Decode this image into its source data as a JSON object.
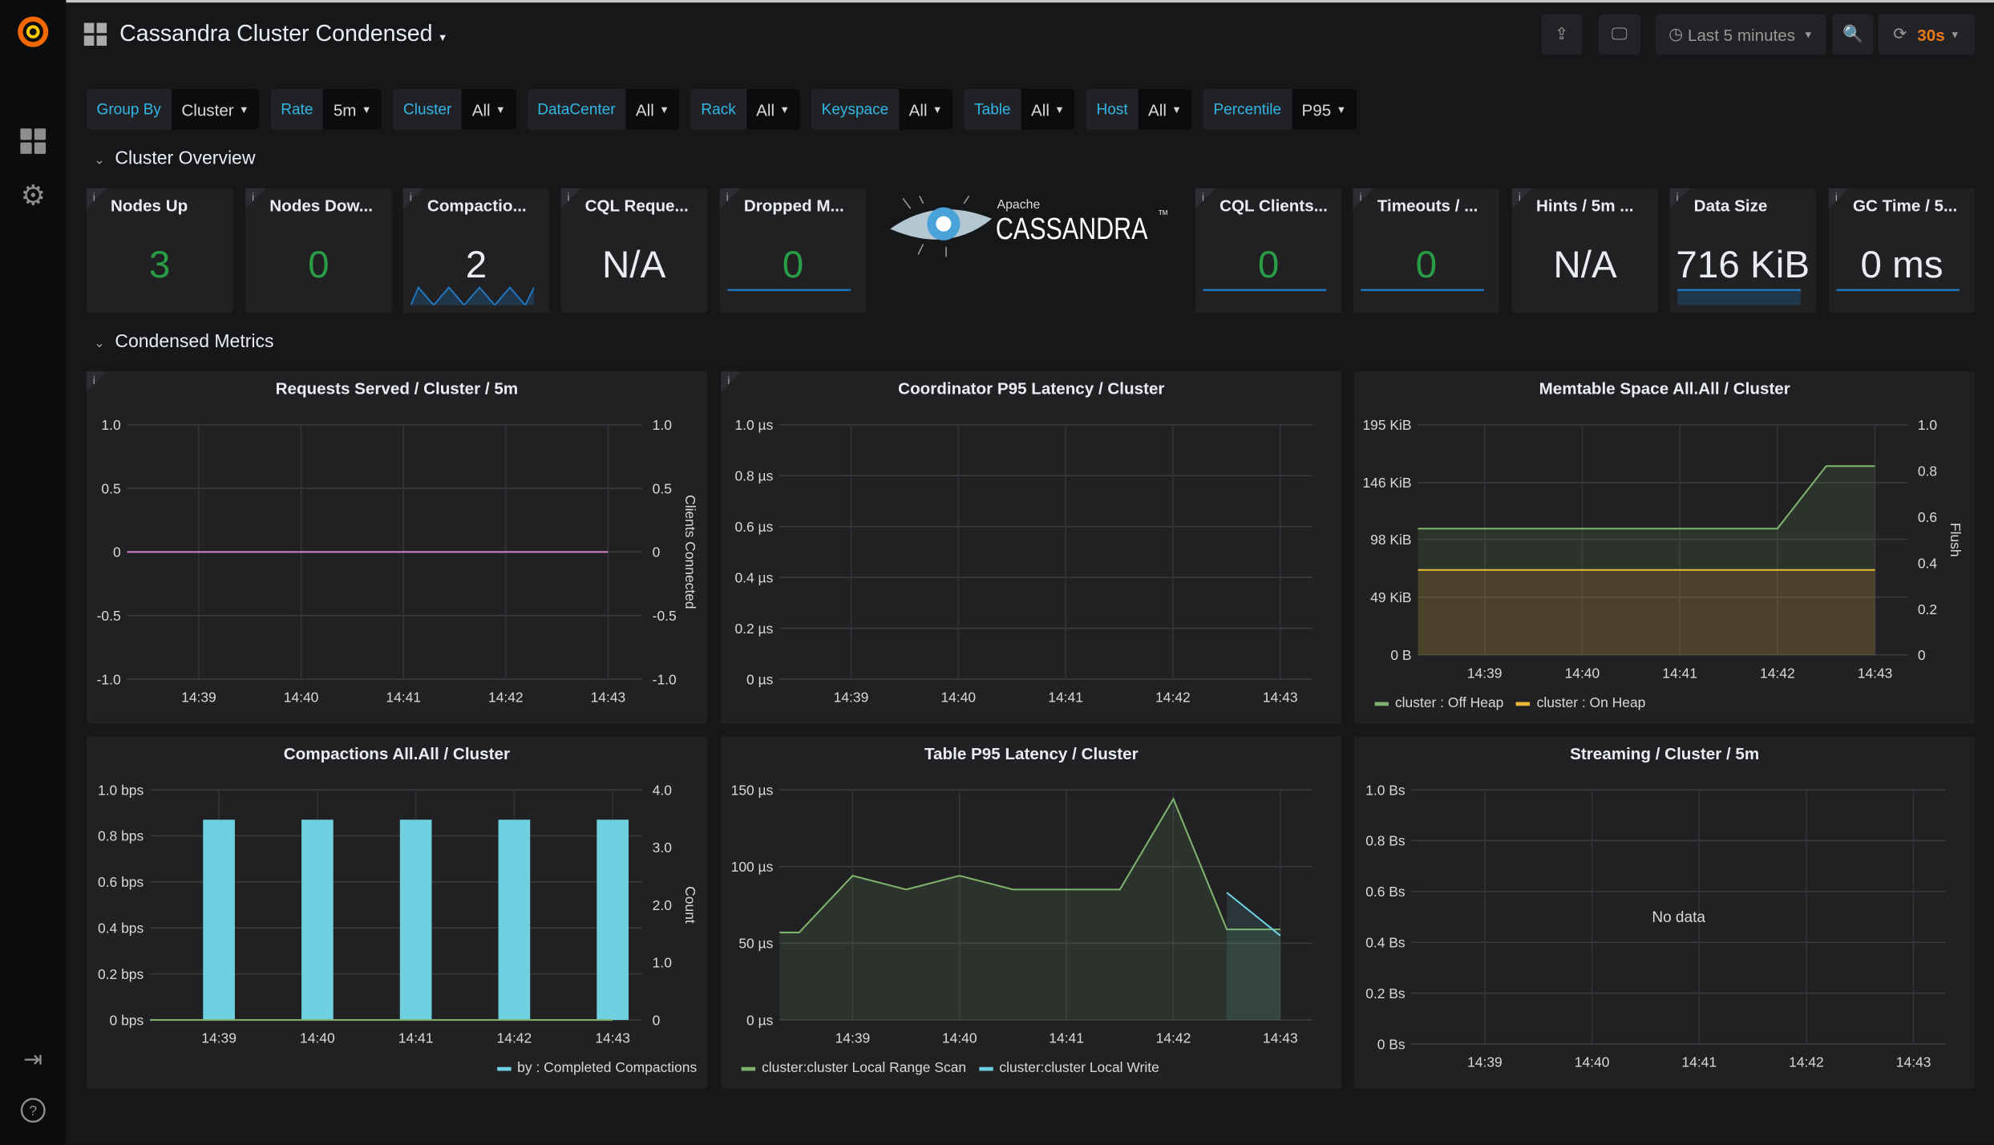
{
  "header": {
    "title": "Cassandra Cluster Condensed",
    "time_range": "Last 5 minutes",
    "refresh": "30s",
    "buttons": [
      "share-icon",
      "tv-icon",
      "zoom-out-icon",
      "refresh-icon"
    ]
  },
  "sidebar": {
    "items": [
      "grafana-logo",
      "dashboards-icon",
      "gear-icon",
      "sign-in-icon",
      "help-icon"
    ]
  },
  "variables": [
    {
      "label": "Group By",
      "value": "Cluster"
    },
    {
      "label": "Rate",
      "value": "5m"
    },
    {
      "label": "Cluster",
      "value": "All"
    },
    {
      "label": "DataCenter",
      "value": "All"
    },
    {
      "label": "Rack",
      "value": "All"
    },
    {
      "label": "Keyspace",
      "value": "All"
    },
    {
      "label": "Table",
      "value": "All"
    },
    {
      "label": "Host",
      "value": "All"
    },
    {
      "label": "Percentile",
      "value": "P95"
    }
  ],
  "rows": {
    "overview": "Cluster Overview",
    "metrics": "Condensed Metrics"
  },
  "logo": {
    "small": "Apache",
    "big": "CASSANDRA",
    "tm": "TM"
  },
  "colors": {
    "accent": "#33b5e5",
    "green": "#299c46",
    "orange": "#eb7b18",
    "white": "#e9edf2",
    "spark": "#1f78c1"
  },
  "stats": [
    {
      "title": "Nodes Up",
      "value": "3",
      "color": "#299c46",
      "spark": "none"
    },
    {
      "title": "Nodes Dow...",
      "value": "0",
      "color": "#299c46",
      "spark": "none"
    },
    {
      "title": "Compactio...",
      "value": "2",
      "color": "#e9edf2",
      "spark": "zigzag"
    },
    {
      "title": "CQL Reque...",
      "value": "N/A",
      "color": "#e9edf2",
      "spark": "none"
    },
    {
      "title": "Dropped M...",
      "value": "0",
      "color": "#299c46",
      "spark": "flat"
    },
    {
      "title": "CQL Clients...",
      "value": "0",
      "color": "#299c46",
      "spark": "flat"
    },
    {
      "title": "Timeouts / ...",
      "value": "0",
      "color": "#299c46",
      "spark": "flat"
    },
    {
      "title": "Hints / 5m ...",
      "value": "N/A",
      "color": "#e9edf2",
      "spark": "none"
    },
    {
      "title": "Data Size",
      "value": "716 KiB",
      "color": "#e9edf2",
      "spark": "filled"
    },
    {
      "title": "GC Time / 5...",
      "value": "0 ms",
      "color": "#e9edf2",
      "spark": "flat"
    }
  ],
  "chart_data": [
    {
      "type": "line",
      "title": "Requests Served / Cluster / 5m",
      "info": true,
      "xrange": [
        "14:38:18",
        "14:43:20"
      ],
      "xticks": [
        "14:39",
        "14:40",
        "14:41",
        "14:42",
        "14:43"
      ],
      "ylim": [
        -1,
        1
      ],
      "yticks": [
        1,
        0.5,
        0,
        -0.5,
        -1
      ],
      "ytick_labels": [
        "1.0",
        "0.5",
        "0",
        "-0.5",
        "-1.0"
      ],
      "y2ticks": [
        "1.0",
        "0.5",
        "0",
        "-0.5",
        "-1.0"
      ],
      "y2label": "Clients Connected",
      "series": [
        {
          "color": "#d683ce",
          "points": [
            [
              "14:38:18",
              0
            ],
            [
              "14:43:00",
              0
            ]
          ]
        }
      ],
      "legend": []
    },
    {
      "type": "line",
      "title": "Coordinator P95 Latency / Cluster",
      "info": true,
      "xrange": [
        "14:38:20",
        "14:43:18"
      ],
      "xticks": [
        "14:39",
        "14:40",
        "14:41",
        "14:42",
        "14:43"
      ],
      "ylim": [
        0,
        1
      ],
      "yticks": [
        1,
        0.8,
        0.6,
        0.4,
        0.2,
        0
      ],
      "ytick_labels": [
        "1.0 µs",
        "0.8 µs",
        "0.6 µs",
        "0.4 µs",
        "0.2 µs",
        "0 µs"
      ],
      "series": [],
      "legend": []
    },
    {
      "type": "area",
      "stacked": true,
      "title": "Memtable Space All.All / Cluster",
      "info": false,
      "xrange": [
        "14:38:19",
        "14:43:20"
      ],
      "xticks": [
        "14:39",
        "14:40",
        "14:41",
        "14:42",
        "14:43"
      ],
      "ylim": [
        0,
        195
      ],
      "yunit": "KiB",
      "yticks": [
        195,
        146,
        98,
        49,
        0
      ],
      "ytick_labels": [
        "195 KiB",
        "146 KiB",
        "98 KiB",
        "49 KiB",
        "0 B"
      ],
      "y2ticks": [
        "1.0",
        "0.8",
        "0.6",
        "0.4",
        "0.2",
        "0"
      ],
      "y2label": "Flush",
      "series": [
        {
          "name": "cluster : On Heap",
          "color": "#eab839",
          "points": [
            [
              "14:38:19",
              72
            ],
            [
              "14:43:00",
              72
            ]
          ]
        },
        {
          "name": "cluster : Off Heap",
          "color": "#7eb26d",
          "points": [
            [
              "14:38:19",
              35
            ],
            [
              "14:42:00",
              35
            ],
            [
              "14:42:30",
              88
            ],
            [
              "14:43:00",
              88
            ]
          ]
        }
      ],
      "legend": [
        {
          "name": "cluster : Off Heap",
          "color": "#7eb26d"
        },
        {
          "name": "cluster : On Heap",
          "color": "#eab839"
        }
      ]
    },
    {
      "type": "bar",
      "title": "Compactions All.All / Cluster",
      "info": false,
      "xrange": [
        "14:38:18",
        "14:43:18"
      ],
      "xticks": [
        "14:39",
        "14:40",
        "14:41",
        "14:42",
        "14:43"
      ],
      "ylim": [
        0,
        1
      ],
      "yticks": [
        1,
        0.8,
        0.6,
        0.4,
        0.2,
        0
      ],
      "ytick_labels": [
        "1.0 bps",
        "0.8 bps",
        "0.6 bps",
        "0.4 bps",
        "0.2 bps",
        "0 bps"
      ],
      "y2ticks": [
        "4.0",
        "3.0",
        "2.0",
        "1.0",
        "0"
      ],
      "y2label": "Count",
      "series": [
        {
          "name": "by : Completed Compactions",
          "color": "#6ed0e0",
          "points": [
            [
              "14:39:00",
              0.87
            ],
            [
              "14:40:00",
              0.87
            ],
            [
              "14:41:00",
              0.87
            ],
            [
              "14:42:00",
              0.87
            ],
            [
              "14:43:00",
              0.87
            ]
          ]
        },
        {
          "color": "#7eb26d",
          "line": true,
          "points": [
            [
              "14:38:18",
              0
            ],
            [
              "14:43:00",
              0
            ]
          ]
        }
      ],
      "legend": [
        {
          "name": "by : Completed Compactions",
          "color": "#6ed0e0"
        }
      ]
    },
    {
      "type": "area",
      "title": "Table P95 Latency / Cluster",
      "info": false,
      "xrange": [
        "14:38:19",
        "14:43:18"
      ],
      "xticks": [
        "14:39",
        "14:40",
        "14:41",
        "14:42",
        "14:43"
      ],
      "ylim": [
        0,
        150
      ],
      "yunit": "µs",
      "yticks": [
        150,
        100,
        50,
        0
      ],
      "ytick_labels": [
        "150 µs",
        "100 µs",
        "50 µs",
        "0 µs"
      ],
      "series": [
        {
          "name": "cluster:cluster Local Range Scan",
          "color": "#7eb26d",
          "points": [
            [
              "14:38:19",
              57
            ],
            [
              "14:38:30",
              57
            ],
            [
              "14:39:00",
              94
            ],
            [
              "14:39:30",
              85
            ],
            [
              "14:40:00",
              94
            ],
            [
              "14:40:30",
              85
            ],
            [
              "14:41:30",
              85
            ],
            [
              "14:42:00",
              144
            ],
            [
              "14:42:30",
              59
            ],
            [
              "14:43:00",
              59
            ]
          ]
        },
        {
          "name": "cluster:cluster Local Write",
          "color": "#6ed0e0",
          "points": [
            [
              "14:42:30",
              83
            ],
            [
              "14:43:00",
              55
            ]
          ]
        }
      ],
      "legend": [
        {
          "name": "cluster:cluster Local Range Scan",
          "color": "#7eb26d"
        },
        {
          "name": "cluster:cluster Local Write",
          "color": "#6ed0e0"
        }
      ]
    },
    {
      "type": "line",
      "title": "Streaming / Cluster / 5m",
      "info": false,
      "xrange": [
        "14:38:19",
        "14:43:18"
      ],
      "xticks": [
        "14:39",
        "14:40",
        "14:41",
        "14:42",
        "14:43"
      ],
      "ylim": [
        0,
        1
      ],
      "yticks": [
        1,
        0.8,
        0.6,
        0.4,
        0.2,
        0
      ],
      "ytick_labels": [
        "1.0 Bs",
        "0.8 Bs",
        "0.6 Bs",
        "0.4 Bs",
        "0.2 Bs",
        "0 Bs"
      ],
      "series": [],
      "legend": [],
      "no_data": "No data"
    }
  ]
}
